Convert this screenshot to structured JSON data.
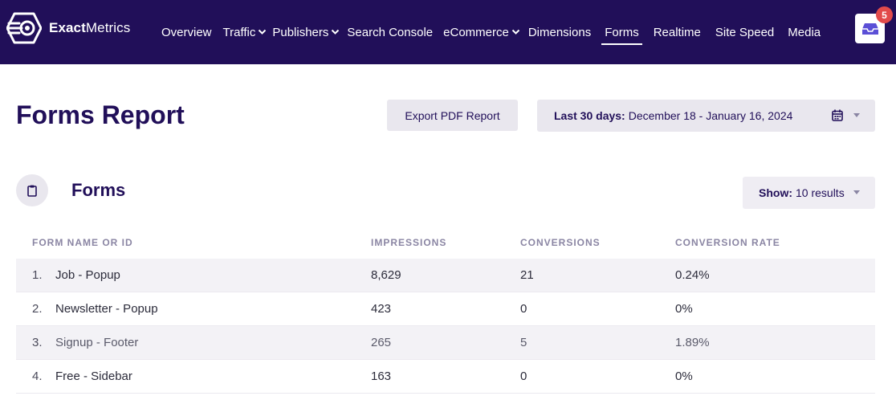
{
  "app": {
    "brand_bold": "Exact",
    "brand_regular": "Metrics"
  },
  "nav": {
    "items": [
      {
        "label": "Overview",
        "has_dropdown": false
      },
      {
        "label": "Traffic",
        "has_dropdown": true
      },
      {
        "label": "Publishers",
        "has_dropdown": true
      },
      {
        "label": "Search Console",
        "has_dropdown": false
      },
      {
        "label": "eCommerce",
        "has_dropdown": true
      },
      {
        "label": "Dimensions",
        "has_dropdown": false
      },
      {
        "label": "Forms",
        "has_dropdown": false,
        "active": true
      },
      {
        "label": "Realtime",
        "has_dropdown": false
      },
      {
        "label": "Site Speed",
        "has_dropdown": false
      },
      {
        "label": "Media",
        "has_dropdown": false
      }
    ],
    "notification_count": "5"
  },
  "header": {
    "title": "Forms Report",
    "export_label": "Export PDF Report",
    "date_range_prefix": "Last 30 days:",
    "date_range_value": "December 18 - January 16, 2024"
  },
  "section": {
    "title": "Forms",
    "show_prefix": "Show:",
    "show_value": "10 results"
  },
  "table": {
    "columns": [
      "Form Name or ID",
      "Impressions",
      "Conversions",
      "Conversion Rate"
    ],
    "rows": [
      {
        "index": "1.",
        "name": "Job - Popup",
        "impressions": "8,629",
        "conversions": "21",
        "rate": "0.24%"
      },
      {
        "index": "2.",
        "name": "Newsletter - Popup",
        "impressions": "423",
        "conversions": "0",
        "rate": "0%"
      },
      {
        "index": "3.",
        "name": "Signup - Footer",
        "impressions": "265",
        "conversions": "5",
        "rate": "1.89%"
      },
      {
        "index": "4.",
        "name": "Free - Sidebar",
        "impressions": "163",
        "conversions": "0",
        "rate": "0%"
      }
    ]
  },
  "colors": {
    "nav_bg": "#210f59",
    "accent_text": "#210f59",
    "badge": "#e24b4b",
    "button_bg": "#e9e7ee",
    "row_stripe": "#f3f2f6"
  },
  "icons": {
    "logo": "exactmetrics-target-logo-icon",
    "notifications": "inbox-tray-icon",
    "calendar": "calendar-icon",
    "section": "clipboard-icon",
    "dropdown": "chevron-down-icon"
  }
}
